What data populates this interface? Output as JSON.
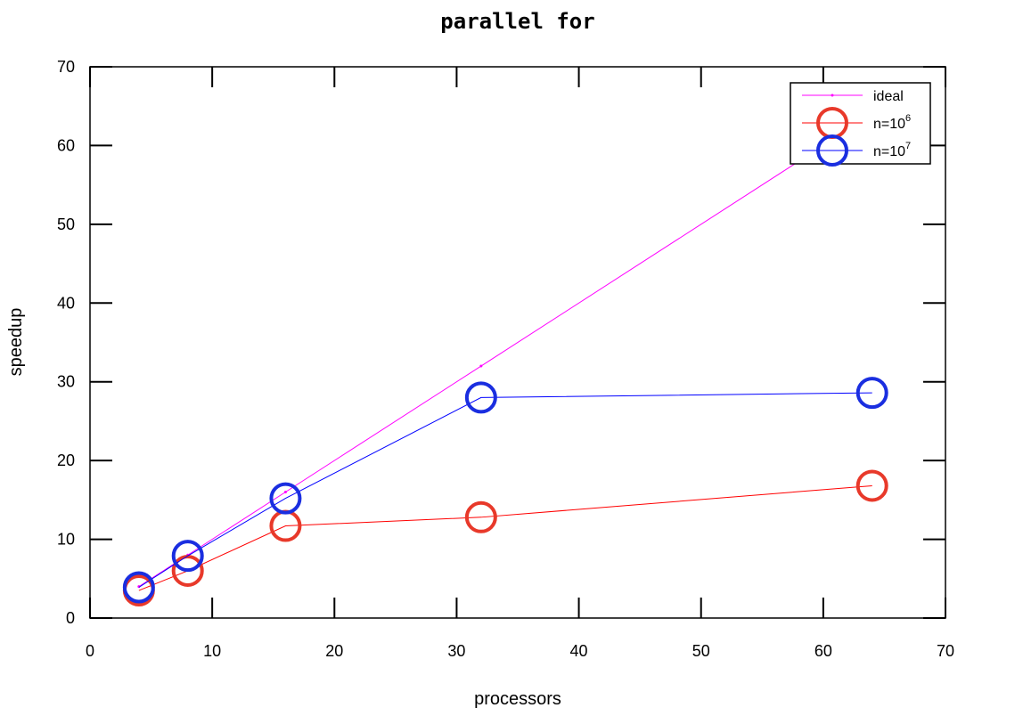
{
  "chart_data": {
    "type": "line",
    "title": "parallel for",
    "xlabel": "processors",
    "ylabel": "speedup",
    "xlim": [
      0,
      70
    ],
    "ylim": [
      0,
      70
    ],
    "xticks": [
      0,
      10,
      20,
      30,
      40,
      50,
      60,
      70
    ],
    "yticks": [
      0,
      10,
      20,
      30,
      40,
      50,
      60,
      70
    ],
    "grid": false,
    "legend_position": "top-right",
    "series": [
      {
        "name": "ideal",
        "marker": "dot",
        "color": "#ff00ff",
        "x": [
          4,
          8,
          16,
          32,
          64
        ],
        "y": [
          4,
          8,
          16,
          32,
          64
        ]
      },
      {
        "name": "n=10",
        "name_sup": "6",
        "marker": "circle",
        "color": "#e8392a",
        "line_color": "#ff0000",
        "x": [
          4,
          8,
          16,
          32,
          64
        ],
        "y": [
          3.5,
          6.0,
          11.7,
          12.8,
          16.8
        ]
      },
      {
        "name": "n=10",
        "name_sup": "7",
        "marker": "circle",
        "color": "#1a2ee0",
        "line_color": "#0000ff",
        "x": [
          4,
          8,
          16,
          32,
          64
        ],
        "y": [
          3.9,
          7.9,
          15.2,
          28.0,
          28.6
        ]
      }
    ]
  }
}
